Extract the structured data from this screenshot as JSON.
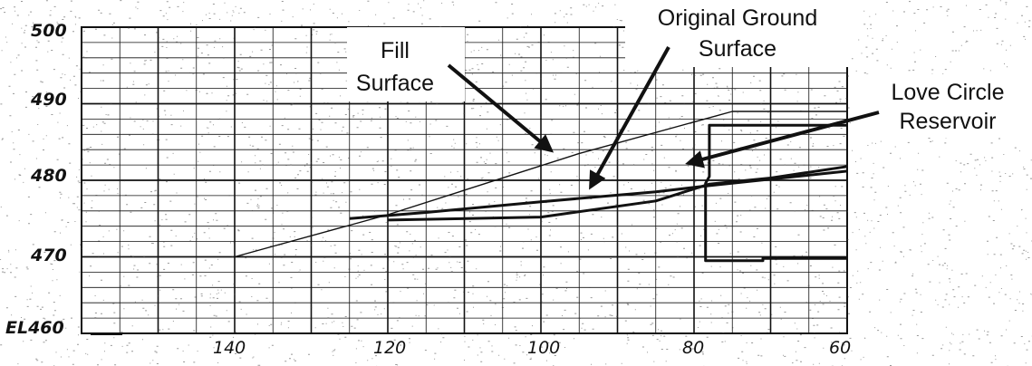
{
  "chart_data": {
    "type": "line",
    "title": "",
    "xlabel": "",
    "ylabel": "",
    "x_reversed": true,
    "xlim": [
      60,
      160
    ],
    "ylim": [
      460,
      500
    ],
    "y_tick_labels": [
      "EL460",
      "470",
      "480",
      "490",
      "500"
    ],
    "x_tick_labels": [
      "140",
      "120",
      "100",
      "80",
      "60"
    ],
    "grid": true,
    "series": [
      {
        "key": "fill",
        "x": [
          140,
          120,
          95,
          75,
          60
        ],
        "y": [
          470,
          475.5,
          483.5,
          489,
          489
        ],
        "weight": "thin"
      },
      {
        "key": "ground",
        "x": [
          125,
          115,
          100,
          85,
          78,
          60
        ],
        "y": [
          475,
          475.8,
          477.2,
          478.5,
          479.3,
          481.2
        ],
        "weight": "bold"
      },
      {
        "key": "reservoir",
        "x": [
          120,
          100,
          85,
          78,
          70,
          60
        ],
        "y": [
          474.8,
          475.2,
          477.3,
          479.5,
          480.3,
          481.8
        ],
        "weight": "bold"
      },
      {
        "key": "structure",
        "x": [
          60,
          78,
          78,
          78.5,
          78.5,
          71,
          71,
          60
        ],
        "y": [
          487.2,
          487.2,
          480.5,
          479.6,
          469.5,
          469.5,
          469.8,
          469.8
        ],
        "weight": "bold"
      }
    ],
    "annotations": [
      {
        "lines": [
          "Fill",
          "Surface"
        ]
      },
      {
        "lines": [
          "Original Ground",
          "Surface"
        ]
      },
      {
        "lines": [
          "Love Circle",
          "Reservoir"
        ]
      }
    ]
  }
}
